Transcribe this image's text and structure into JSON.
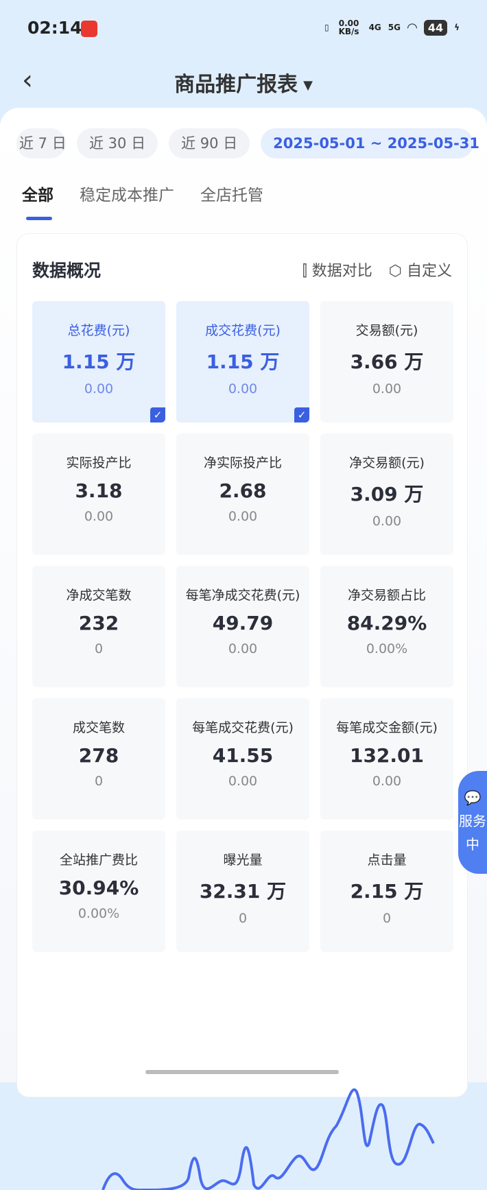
{
  "status": {
    "time": "02:14",
    "net_speed": "0.00 KB/s",
    "net1": "4G",
    "net2": "5G",
    "battery": "44"
  },
  "nav": {
    "title": "商品推广报表"
  },
  "date_chips": [
    "近 7 日",
    "近 30 日",
    "近 90 日",
    "2025-05-01 ~ 2025-05-31"
  ],
  "tabs": [
    "全部",
    "稳定成本推广",
    "全店托管"
  ],
  "overview": {
    "title": "数据概况",
    "compare": "数据对比",
    "customize": "自定义",
    "metrics": [
      {
        "label": "总花费(元)",
        "value": "1.15 万",
        "sub": "0.00",
        "selected": true
      },
      {
        "label": "成交花费(元)",
        "value": "1.15 万",
        "sub": "0.00",
        "selected": true
      },
      {
        "label": "交易额(元)",
        "value": "3.66 万",
        "sub": "0.00"
      },
      {
        "label": "实际投产比",
        "value": "3.18",
        "sub": "0.00"
      },
      {
        "label": "净实际投产比",
        "value": "2.68",
        "sub": "0.00"
      },
      {
        "label": "净交易额(元)",
        "value": "3.09 万",
        "sub": "0.00"
      },
      {
        "label": "净成交笔数",
        "value": "232",
        "sub": "0"
      },
      {
        "label": "每笔净成交花费(元)",
        "value": "49.79",
        "sub": "0.00"
      },
      {
        "label": "净交易额占比",
        "value": "84.29%",
        "sub": "0.00%"
      },
      {
        "label": "成交笔数",
        "value": "278",
        "sub": "0"
      },
      {
        "label": "每笔成交花费(元)",
        "value": "41.55",
        "sub": "0.00"
      },
      {
        "label": "每笔成交金额(元)",
        "value": "132.01",
        "sub": "0.00"
      },
      {
        "label": "全站推广费比",
        "value": "30.94%",
        "sub": "0.00%"
      },
      {
        "label": "曝光量",
        "value": "32.31 万",
        "sub": "0"
      },
      {
        "label": "点击量",
        "value": "2.15 万",
        "sub": "0"
      }
    ]
  },
  "float_service": "服务中",
  "colors": {
    "accent": "#3a5fe0",
    "line": "#4a6cf0"
  }
}
